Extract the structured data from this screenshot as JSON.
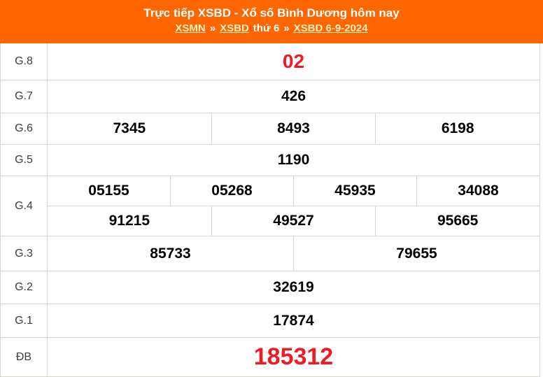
{
  "header": {
    "title": "Trực tiếp XSBD - Xổ số Bình Dương hôm nay",
    "breadcrumb": [
      {
        "label": "XSMN",
        "link": true
      },
      {
        "label": "»",
        "link": false
      },
      {
        "label": "XSBD",
        "link": true
      },
      {
        "label": "thứ 6",
        "link": false
      },
      {
        "label": "»",
        "link": false
      },
      {
        "label": "XSBD 6-9-2024",
        "link": true
      }
    ]
  },
  "colors": {
    "header_orange": "#FF6600",
    "highlight_red": "#ED1C24",
    "link_yellow": "#FFEFC1",
    "border_gray": "#d8d5cd"
  },
  "results": {
    "rows": [
      {
        "label": "G.8",
        "groups": [
          [
            "02"
          ]
        ]
      },
      {
        "label": "G.7",
        "groups": [
          [
            "426"
          ]
        ]
      },
      {
        "label": "G.6",
        "groups": [
          [
            "7345",
            "8493",
            "6198"
          ]
        ]
      },
      {
        "label": "G.5",
        "groups": [
          [
            "1190"
          ]
        ]
      },
      {
        "label": "G.4",
        "groups": [
          [
            "05155",
            "05268",
            "45935",
            "34088"
          ],
          [
            "91215",
            "49527",
            "95665"
          ]
        ]
      },
      {
        "label": "G.3",
        "groups": [
          [
            "85733",
            "79655"
          ]
        ]
      },
      {
        "label": "G.2",
        "groups": [
          [
            "32619"
          ]
        ]
      },
      {
        "label": "G.1",
        "groups": [
          [
            "17874"
          ]
        ]
      },
      {
        "label": "ĐB",
        "groups": [
          [
            "185312"
          ]
        ]
      }
    ]
  }
}
